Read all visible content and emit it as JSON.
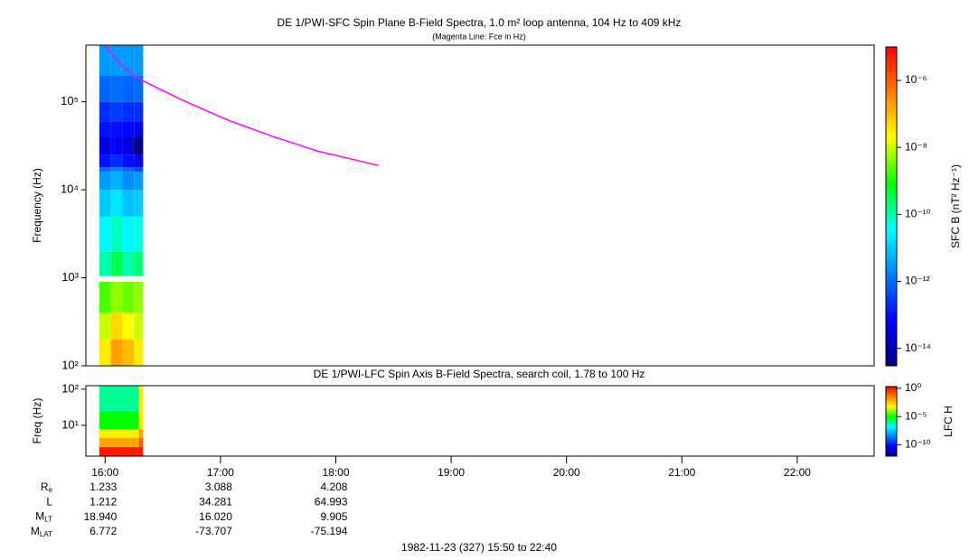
{
  "chart_data": [
    {
      "type": "heatmap",
      "title": "DE 1/PWI-SFC  Spin Plane B-Field Spectra, 1.0 m² loop antenna, 104 Hz to 409 kHz",
      "subtitle": "(Magenta Line: Fce in Hz)",
      "ylabel": "Frequency (Hz)",
      "xlim": [
        15.8333,
        22.6667
      ],
      "ylim": [
        100,
        440000
      ],
      "log_y": true,
      "yticks": [
        {
          "value": 100,
          "label": "10²"
        },
        {
          "value": 1000,
          "label": "10³"
        },
        {
          "value": 10000,
          "label": "10⁴"
        },
        {
          "value": 100000,
          "label": "10⁵"
        }
      ],
      "x_bins": [
        15.95,
        16.05,
        16.15,
        16.25,
        16.33
      ],
      "y_bins": [
        100,
        200,
        400,
        900,
        1050,
        2000,
        5000,
        10000,
        16000,
        18000,
        25000,
        40000,
        60000,
        100000,
        200000,
        440000
      ],
      "z": [
        [
          3e-08,
          2e-07,
          1e-07,
          3e-08
        ],
        [
          1e-08,
          5e-08,
          2e-08,
          1e-08
        ],
        [
          2e-09,
          5e-09,
          3e-09,
          5e-09
        ],
        [
          null,
          null,
          null,
          null
        ],
        [
          1e-10,
          3e-10,
          1e-10,
          2e-10
        ],
        [
          3e-11,
          8e-11,
          3e-11,
          5e-11
        ],
        [
          1e-11,
          2e-11,
          8e-12,
          1e-11
        ],
        [
          3e-12,
          5e-12,
          2e-12,
          3e-12
        ],
        [
          1e-12,
          2e-12,
          1e-12,
          5e-13
        ],
        [
          1e-13,
          2e-13,
          1e-13,
          8e-14
        ],
        [
          3e-14,
          5e-14,
          3e-14,
          3e-15
        ],
        [
          1e-13,
          1e-13,
          8e-14,
          5e-14
        ],
        [
          2e-13,
          3e-13,
          2e-13,
          2e-13
        ],
        [
          8e-13,
          1e-12,
          8e-13,
          1e-12
        ],
        [
          3e-12,
          3e-12,
          3e-12,
          3e-12
        ]
      ],
      "colorbar": {
        "label": "SFC B (nT² Hz⁻¹)",
        "zlim": [
          3e-15,
          1e-05
        ],
        "log": true,
        "ticks": [
          {
            "value": 1e-06,
            "label": "10⁻⁶"
          },
          {
            "value": 1e-08,
            "label": "10⁻⁸"
          },
          {
            "value": 1e-10,
            "label": "10⁻¹⁰"
          },
          {
            "value": 1e-12,
            "label": "10⁻¹²"
          },
          {
            "value": 1e-14,
            "label": "10⁻¹⁴"
          }
        ],
        "colors": [
          "#00007f",
          "#0000ff",
          "#0080ff",
          "#00ffff",
          "#00ff00",
          "#ffff00",
          "#ff8000",
          "#ff0000"
        ]
      },
      "overlay": {
        "color": "#ff00ff",
        "x": [
          16.0,
          16.17,
          16.31,
          16.66,
          17.05,
          17.44,
          17.84,
          18.37
        ],
        "values": [
          430000,
          240000,
          178000,
          106000,
          63000,
          41000,
          27600,
          18900
        ]
      }
    },
    {
      "type": "heatmap",
      "title": "DE 1/PWI-LFC  Spin Axis B-Field Spectra, search coil, 1.78 to 100 Hz",
      "ylabel": "Freq (Hz)",
      "xlim": [
        15.8333,
        22.6667
      ],
      "xticks": [
        {
          "value": 16,
          "label": "16:00"
        },
        {
          "value": 17,
          "label": "17:00"
        },
        {
          "value": 18,
          "label": "18:00"
        },
        {
          "value": 19,
          "label": "19:00"
        },
        {
          "value": 20,
          "label": "20:00"
        },
        {
          "value": 21,
          "label": "21:00"
        },
        {
          "value": 22,
          "label": "22:00"
        }
      ],
      "ylim": [
        1.4,
        125
      ],
      "log_y": true,
      "yticks": [
        {
          "value": 10,
          "label": "10¹"
        },
        {
          "value": 100,
          "label": "10²"
        }
      ],
      "x_bins": [
        15.95,
        16.29,
        16.33
      ],
      "y_bins": [
        1.4,
        2.5,
        4.5,
        7.9,
        25,
        125
      ],
      "z": [
        [
          1,
          1
        ],
        [
          0.01,
          0.1
        ],
        [
          0.001,
          0.01
        ],
        [
          1e-05,
          0.001
        ],
        [
          1e-06,
          0.001
        ]
      ],
      "colorbar": {
        "label": "LFC H",
        "zlim": [
          1e-12,
          2
        ],
        "log": true,
        "ticks": [
          {
            "value": 1,
            "label": "10⁰"
          },
          {
            "value": 1e-05,
            "label": "10⁻⁵"
          },
          {
            "value": 1e-10,
            "label": "10⁻¹⁰"
          }
        ],
        "colors": [
          "#00007f",
          "#0000ff",
          "#0080ff",
          "#00ffff",
          "#00ff00",
          "#ffff00",
          "#ff8000",
          "#ff0000"
        ]
      }
    }
  ],
  "ephemeris": [
    {
      "label": "R",
      "sub": "e",
      "values": [
        "1.233",
        "3.088",
        "4.208"
      ]
    },
    {
      "label": "L",
      "values": [
        "1.212",
        "34.281",
        "64.993"
      ]
    },
    {
      "label": "M",
      "sub": "LT",
      "values": [
        "18.940",
        "16.020",
        "9.905"
      ]
    },
    {
      "label": "M",
      "sub": "LAT",
      "values": [
        "6.772",
        "-73.707",
        "-75.194"
      ]
    }
  ],
  "footer": "1982-11-23 (327) 15:50 to 22:40"
}
